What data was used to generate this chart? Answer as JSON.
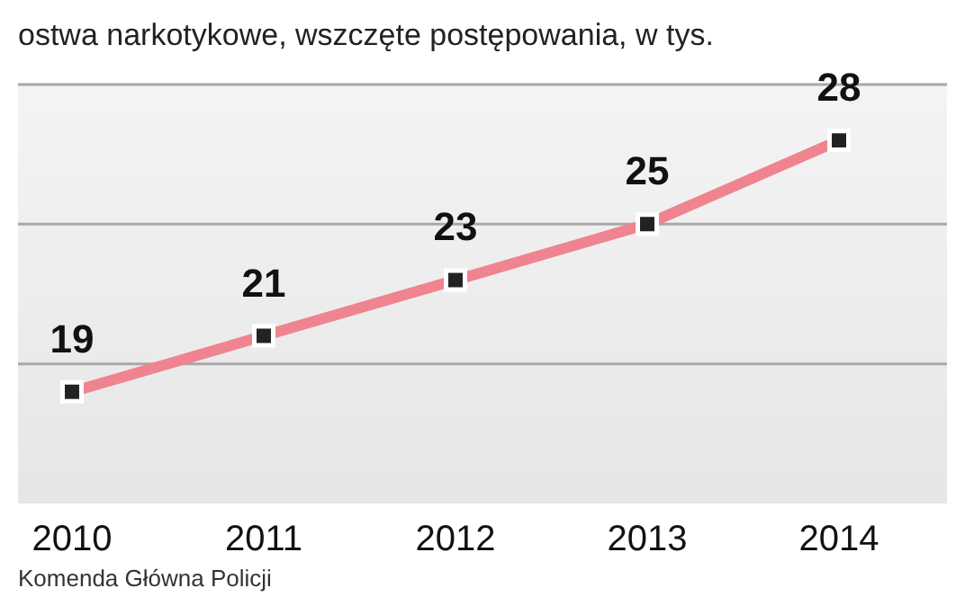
{
  "chart_data": {
    "type": "line",
    "title": "ostwa narkotykowe, wszczęte postępowania, w tys.",
    "categories": [
      "2010",
      "2011",
      "2012",
      "2013",
      "2014"
    ],
    "series": [
      {
        "color": "#ef8490",
        "values": [
          19,
          21,
          23,
          25,
          28
        ]
      }
    ],
    "data_labels": true,
    "marker": "square",
    "line_style": "solid",
    "ylim": [
      15,
      30
    ],
    "ref_lines": [
      {
        "axis": "y",
        "value": 20,
        "color": "#a8a8a8"
      },
      {
        "axis": "y",
        "value": 25,
        "color": "#a8a8a8"
      },
      {
        "axis": "y",
        "value": 30,
        "color": "#a8a8a8"
      }
    ],
    "tick_labels": "x",
    "annotations": [
      "Komenda Główna Policji"
    ]
  }
}
